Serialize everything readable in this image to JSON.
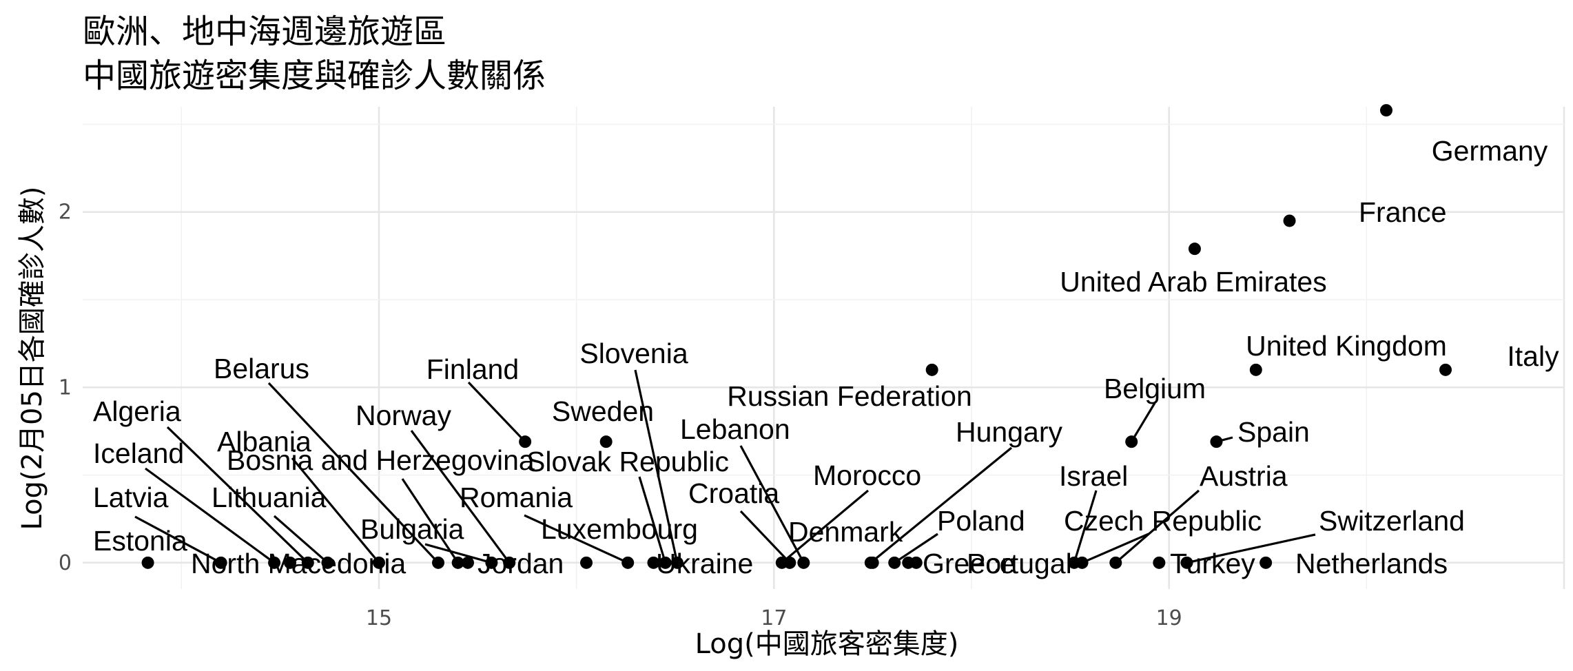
{
  "chart_data": {
    "type": "scatter",
    "title_lines": [
      "歐洲、地中海週邊旅遊區",
      "中國旅遊密集度與確診人數關係"
    ],
    "xlabel": "Log(中國旅客密集度)",
    "ylabel": "Log(2月05日各國確診人數)",
    "xlim": [
      13.5,
      21.0
    ],
    "ylim": [
      -0.15,
      2.6
    ],
    "xticks": [
      15,
      17,
      19
    ],
    "yticks": [
      0,
      1,
      2
    ],
    "grid": true,
    "points": [
      {
        "label": "Germany",
        "x": 20.1,
        "y": 2.58
      },
      {
        "label": "France",
        "x": 19.61,
        "y": 1.95
      },
      {
        "label": "United Arab Emirates",
        "x": 19.13,
        "y": 1.79
      },
      {
        "label": "United Kingdom",
        "x": 19.44,
        "y": 1.1
      },
      {
        "label": "Italy",
        "x": 20.4,
        "y": 1.1
      },
      {
        "label": "Russian Federation",
        "x": 17.8,
        "y": 1.1
      },
      {
        "label": "Belgium",
        "x": 18.81,
        "y": 0.69
      },
      {
        "label": "Spain",
        "x": 19.24,
        "y": 0.69
      },
      {
        "label": "Finland",
        "x": 15.74,
        "y": 0.69
      },
      {
        "label": "Sweden",
        "x": 16.15,
        "y": 0.69
      },
      {
        "label": "Estonia",
        "x": 13.83,
        "y": 0
      },
      {
        "label": "Latvia",
        "x": 14.2,
        "y": 0
      },
      {
        "label": "Iceland",
        "x": 14.47,
        "y": 0
      },
      {
        "label": "Algeria",
        "x": 14.64,
        "y": 0
      },
      {
        "label": "Lithuania",
        "x": 14.74,
        "y": 0
      },
      {
        "label": "North Macedonia",
        "x": 14.55,
        "y": 0
      },
      {
        "label": "Belarus",
        "x": 15.3,
        "y": 0
      },
      {
        "label": "Albania",
        "x": 15.0,
        "y": 0
      },
      {
        "label": "Bosnia and Herzegovina",
        "x": 15.4,
        "y": 0
      },
      {
        "label": "Bulgaria",
        "x": 15.57,
        "y": 0
      },
      {
        "label": "Norway",
        "x": 15.66,
        "y": 0
      },
      {
        "label": "Jordan",
        "x": 15.45,
        "y": 0
      },
      {
        "label": "Romania",
        "x": 16.26,
        "y": 0
      },
      {
        "label": "Luxembourg",
        "x": 16.05,
        "y": 0
      },
      {
        "label": "Slovenia",
        "x": 16.51,
        "y": 0
      },
      {
        "label": "Slovak Republic",
        "x": 16.45,
        "y": 0
      },
      {
        "label": "Ukraine",
        "x": 16.39,
        "y": 0
      },
      {
        "label": "Croatia",
        "x": 17.08,
        "y": 0
      },
      {
        "label": "Lebanon",
        "x": 17.15,
        "y": 0
      },
      {
        "label": "Morocco",
        "x": 17.04,
        "y": 0
      },
      {
        "label": "Denmark",
        "x": 17.5,
        "y": 0
      },
      {
        "label": "Hungary",
        "x": 17.49,
        "y": 0
      },
      {
        "label": "Poland",
        "x": 17.61,
        "y": 0
      },
      {
        "label": "Greece",
        "x": 17.72,
        "y": 0
      },
      {
        "label": "Portugal",
        "x": 17.68,
        "y": 0
      },
      {
        "label": "Israel",
        "x": 18.52,
        "y": 0
      },
      {
        "label": "Czech Republic",
        "x": 18.56,
        "y": 0
      },
      {
        "label": "Austria",
        "x": 18.73,
        "y": 0
      },
      {
        "label": "Turkey",
        "x": 18.95,
        "y": 0
      },
      {
        "label": "Switzerland",
        "x": 19.09,
        "y": 0
      },
      {
        "label": "Netherlands",
        "x": 19.49,
        "y": 0
      }
    ]
  }
}
